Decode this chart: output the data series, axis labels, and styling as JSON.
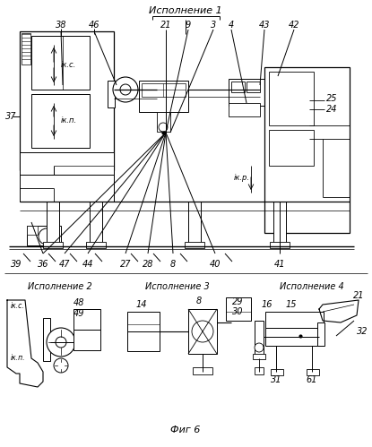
{
  "background": "#ffffff",
  "line_color": "#000000",
  "text_color": "#000000",
  "fig_width": 4.15,
  "fig_height": 4.99,
  "dpi": 100,
  "labels": {
    "ispolnenie1": "Исполнение 1",
    "ispolnenie2": "Исполнение 2",
    "ispolnenie3": "Исполнение 3",
    "ispolnenie4": "Исполнение 4",
    "fig_caption": "Фиг 6",
    "iks": "iк.с.",
    "ikp": "iк.п.",
    "ikr": "iк.р."
  }
}
